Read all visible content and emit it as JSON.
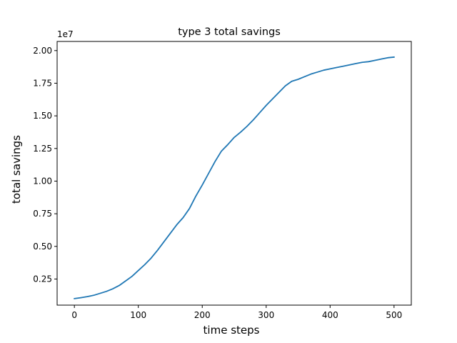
{
  "chart_data": {
    "type": "line",
    "title": "type 3 total savings",
    "xlabel": "time steps",
    "ylabel": "total savings",
    "y_offset_label": "1e7",
    "xlim": [
      -27,
      527
    ],
    "ylim": [
      0.05,
      2.07
    ],
    "y_scale_note": "values in units of 1e7",
    "grid": false,
    "xticks": [
      0,
      100,
      200,
      300,
      400,
      500
    ],
    "xtick_labels": [
      "0",
      "100",
      "200",
      "300",
      "400",
      "500"
    ],
    "yticks": [
      0.25,
      0.5,
      0.75,
      1.0,
      1.25,
      1.5,
      1.75,
      2.0
    ],
    "ytick_labels": [
      "0.25",
      "0.50",
      "0.75",
      "1.00",
      "1.25",
      "1.50",
      "1.75",
      "2.00"
    ],
    "series": [
      {
        "color": "#1f77b4",
        "x": [
          0,
          10,
          20,
          30,
          40,
          50,
          60,
          70,
          80,
          90,
          100,
          110,
          120,
          130,
          140,
          150,
          160,
          170,
          180,
          190,
          200,
          210,
          220,
          230,
          240,
          250,
          260,
          270,
          280,
          290,
          300,
          310,
          320,
          330,
          340,
          350,
          360,
          370,
          380,
          390,
          400,
          410,
          420,
          430,
          440,
          450,
          460,
          470,
          480,
          490,
          500
        ],
        "y": [
          0.1,
          0.107,
          0.115,
          0.125,
          0.14,
          0.155,
          0.175,
          0.2,
          0.235,
          0.27,
          0.315,
          0.36,
          0.41,
          0.47,
          0.535,
          0.6,
          0.665,
          0.72,
          0.79,
          0.885,
          0.97,
          1.06,
          1.15,
          1.23,
          1.28,
          1.335,
          1.375,
          1.42,
          1.47,
          1.525,
          1.58,
          1.63,
          1.68,
          1.73,
          1.765,
          1.78,
          1.8,
          1.82,
          1.835,
          1.85,
          1.86,
          1.87,
          1.88,
          1.89,
          1.9,
          1.91,
          1.915,
          1.925,
          1.935,
          1.945,
          1.95
        ]
      }
    ]
  }
}
